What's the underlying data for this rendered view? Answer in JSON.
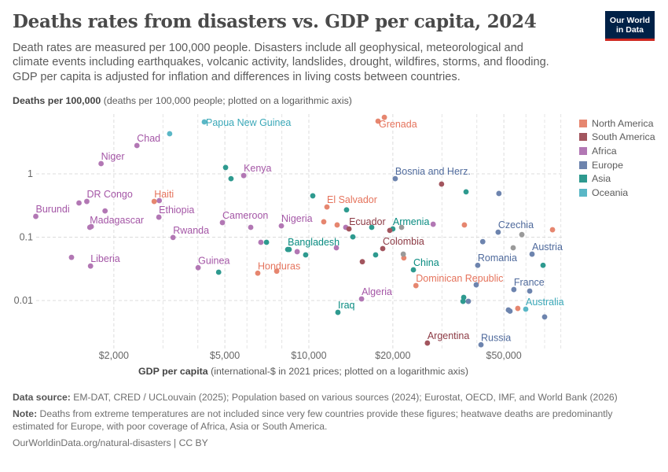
{
  "header": {
    "title": "Deaths rates from disasters vs. GDP per capita, 2024",
    "subtitle": "Death rates are measured per 100,000 people. Disasters include all geophysical, meteorological and climate events including earthquakes, volcanic activity, landslides, drought, wildfires, storms, and flooding. GDP per capita is adjusted for inflation and differences in living costs between countries.",
    "logo_text": "Our World in Data"
  },
  "footer": {
    "source_label": "Data source:",
    "source_text": "EM-DAT, CRED / UCLouvain (2025); Population based on various sources (2024); Eurostat, OECD, IMF, and World Bank (2026)",
    "note_label": "Note:",
    "note_text": "Deaths from extreme temperatures are not included since very few countries provide these figures; heatwave deaths are predominantly estimated for Europe, with poor coverage of Africa, Asia or South America.",
    "url": "OurWorldinData.org/natural-disasters | CC BY"
  },
  "chart_data": {
    "type": "scatter",
    "title": "Deaths rates from disasters vs. GDP per capita, 2024",
    "ylabel_bold": "Deaths per 100,000",
    "ylabel_rest": "(deaths per 100,000 people; plotted on a logarithmic axis)",
    "xlabel_bold": "GDP per capita",
    "xlabel_rest": "(international-$ in 2021 prices; plotted on a logarithmic axis)",
    "x_scale": "log",
    "y_scale": "log",
    "xlim": [
      1000,
      81000
    ],
    "ylim": [
      0.0019,
      8.8
    ],
    "grid": true,
    "legend_position": "right",
    "x_ticks": [
      {
        "value": 2000,
        "label": "$2,000"
      },
      {
        "value": 5000,
        "label": "$5,000"
      },
      {
        "value": 10000,
        "label": "$10,000"
      },
      {
        "value": 20000,
        "label": "$20,000"
      },
      {
        "value": 50000,
        "label": "$50,000"
      }
    ],
    "y_ticks": [
      {
        "value": 0.01,
        "label": "0.01"
      },
      {
        "value": 0.1,
        "label": "0.1"
      },
      {
        "value": 1,
        "label": "1"
      }
    ],
    "legend": [
      {
        "name": "North America",
        "color": "#e6866f"
      },
      {
        "name": "South America",
        "color": "#a2555e"
      },
      {
        "name": "Africa",
        "color": "#b277b4"
      },
      {
        "name": "Europe",
        "color": "#6d84ae"
      },
      {
        "name": "Asia",
        "color": "#2e9a8f"
      },
      {
        "name": "Oceania",
        "color": "#5ab7c6"
      }
    ],
    "label_colors": {
      "North America": "#e5735c",
      "South America": "#8c3a44",
      "Africa": "#a456a6",
      "Europe": "#4f6a9c",
      "Asia": "#088b80",
      "Oceania": "#3aa8b8",
      "": "#888888"
    },
    "other_color": "#9a9a9a",
    "points": [
      {
        "label": "Burundi",
        "region": "Africa",
        "x": 1050,
        "y": 0.213
      },
      {
        "label": "",
        "region": "Africa",
        "x": 1410,
        "y": 0.048
      },
      {
        "label": "Liberia",
        "region": "Africa",
        "x": 1650,
        "y": 0.035
      },
      {
        "label": "Madagascar",
        "region": "Africa",
        "x": 1640,
        "y": 0.143
      },
      {
        "label": "",
        "region": "Africa",
        "x": 1660,
        "y": 0.147
      },
      {
        "label": "",
        "region": "Africa",
        "x": 1500,
        "y": 0.347
      },
      {
        "label": "DR Congo",
        "region": "Africa",
        "x": 1600,
        "y": 0.367
      },
      {
        "label": "",
        "region": "Africa",
        "x": 1860,
        "y": 0.26
      },
      {
        "label": "Niger",
        "region": "Africa",
        "x": 1800,
        "y": 1.45
      },
      {
        "label": "Chad",
        "region": "Africa",
        "x": 2420,
        "y": 2.8
      },
      {
        "label": "Ethiopia",
        "region": "Africa",
        "x": 2900,
        "y": 0.207
      },
      {
        "label": "",
        "region": "Africa",
        "x": 2910,
        "y": 0.378
      },
      {
        "label": "Rwanda",
        "region": "Africa",
        "x": 3260,
        "y": 0.099
      },
      {
        "label": "Guinea",
        "region": "Africa",
        "x": 4010,
        "y": 0.033
      },
      {
        "label": "Kenya",
        "region": "Africa",
        "x": 5840,
        "y": 0.94
      },
      {
        "label": "Cameroon",
        "region": "Africa",
        "x": 4900,
        "y": 0.17
      },
      {
        "label": "",
        "region": "Africa",
        "x": 6190,
        "y": 0.143
      },
      {
        "label": "",
        "region": "Africa",
        "x": 6730,
        "y": 0.083
      },
      {
        "label": "Nigeria",
        "region": "Africa",
        "x": 7970,
        "y": 0.151
      },
      {
        "label": "",
        "region": "Africa",
        "x": 9080,
        "y": 0.059
      },
      {
        "label": "",
        "region": "Africa",
        "x": 13560,
        "y": 0.143
      },
      {
        "label": "",
        "region": "Africa",
        "x": 12550,
        "y": 0.068
      },
      {
        "label": "Algeria",
        "region": "Africa",
        "x": 15450,
        "y": 0.0106
      },
      {
        "label": "",
        "region": "Africa",
        "x": 27900,
        "y": 0.16
      },
      {
        "label": "",
        "region": "Asia",
        "x": 5030,
        "y": 1.26
      },
      {
        "label": "",
        "region": "Asia",
        "x": 5260,
        "y": 0.84
      },
      {
        "label": "",
        "region": "Asia",
        "x": 4750,
        "y": 0.028
      },
      {
        "label": "",
        "region": "Asia",
        "x": 7050,
        "y": 0.083
      },
      {
        "label": "Bangladesh",
        "region": "Asia",
        "x": 8400,
        "y": 0.064
      },
      {
        "label": "",
        "region": "Asia",
        "x": 8500,
        "y": 0.064
      },
      {
        "label": "",
        "region": "Asia",
        "x": 9740,
        "y": 0.0525
      },
      {
        "label": "",
        "region": "Asia",
        "x": 10330,
        "y": 0.45
      },
      {
        "label": "",
        "region": "Asia",
        "x": 13650,
        "y": 0.27
      },
      {
        "label": "",
        "region": "Asia",
        "x": 14380,
        "y": 0.101
      },
      {
        "label": "Iraq",
        "region": "Asia",
        "x": 12710,
        "y": 0.0065
      },
      {
        "label": "",
        "region": "Asia",
        "x": 16800,
        "y": 0.143
      },
      {
        "label": "",
        "region": "Asia",
        "x": 17350,
        "y": 0.0525
      },
      {
        "label": "Armenia",
        "region": "Asia",
        "x": 20000,
        "y": 0.135
      },
      {
        "label": "China",
        "region": "Asia",
        "x": 23700,
        "y": 0.0305
      },
      {
        "label": "",
        "region": "Asia",
        "x": 36600,
        "y": 0.52
      },
      {
        "label": "",
        "region": "Asia",
        "x": 35900,
        "y": 0.0112
      },
      {
        "label": "",
        "region": "Asia",
        "x": 35700,
        "y": 0.0097
      },
      {
        "label": "",
        "region": "Asia",
        "x": 69100,
        "y": 0.036
      },
      {
        "label": "Papua New Guinea",
        "region": "Oceania",
        "x": 4220,
        "y": 6.6
      },
      {
        "label": "",
        "region": "Oceania",
        "x": 3170,
        "y": 4.3
      },
      {
        "label": "Australia",
        "region": "Oceania",
        "x": 59900,
        "y": 0.0073
      },
      {
        "label": "Ecuador",
        "region": "South America",
        "x": 13930,
        "y": 0.135
      },
      {
        "label": "",
        "region": "South America",
        "x": 19500,
        "y": 0.128
      },
      {
        "label": "Colombia",
        "region": "South America",
        "x": 18400,
        "y": 0.066
      },
      {
        "label": "",
        "region": "South America",
        "x": 15550,
        "y": 0.041
      },
      {
        "label": "",
        "region": "South America",
        "x": 29900,
        "y": 0.69
      },
      {
        "label": "Argentina",
        "region": "South America",
        "x": 26600,
        "y": 0.00213
      },
      {
        "label": "Haiti",
        "region": "North America",
        "x": 2790,
        "y": 0.367
      },
      {
        "label": "Honduras",
        "region": "North America",
        "x": 6560,
        "y": 0.027
      },
      {
        "label": "",
        "region": "North America",
        "x": 7670,
        "y": 0.029
      },
      {
        "label": "El Salvador",
        "region": "North America",
        "x": 11610,
        "y": 0.3
      },
      {
        "label": "",
        "region": "North America",
        "x": 11310,
        "y": 0.175
      },
      {
        "label": "",
        "region": "North America",
        "x": 12630,
        "y": 0.156
      },
      {
        "label": "",
        "region": "North America",
        "x": 18650,
        "y": 7.8
      },
      {
        "label": "Grenada",
        "region": "North America",
        "x": 17700,
        "y": 6.8
      },
      {
        "label": "",
        "region": "North America",
        "x": 21900,
        "y": 0.047
      },
      {
        "label": "Dominican Republic",
        "region": "North America",
        "x": 24200,
        "y": 0.0172
      },
      {
        "label": "",
        "region": "North America",
        "x": 36100,
        "y": 0.156
      },
      {
        "label": "",
        "region": "North America",
        "x": 74700,
        "y": 0.131
      },
      {
        "label": "",
        "region": "North America",
        "x": 56100,
        "y": 0.0075
      },
      {
        "label": "Bosnia and Herz.",
        "region": "Europe",
        "x": 20400,
        "y": 0.84
      },
      {
        "label": "",
        "region": "Europe",
        "x": 48000,
        "y": 0.49
      },
      {
        "label": "Czechia",
        "region": "Europe",
        "x": 47700,
        "y": 0.12
      },
      {
        "label": "",
        "region": "Europe",
        "x": 42000,
        "y": 0.085
      },
      {
        "label": "Romania",
        "region": "Europe",
        "x": 40300,
        "y": 0.036
      },
      {
        "label": "",
        "region": "Europe",
        "x": 39800,
        "y": 0.0177
      },
      {
        "label": "France",
        "region": "Europe",
        "x": 54300,
        "y": 0.0149
      },
      {
        "label": "",
        "region": "Europe",
        "x": 61900,
        "y": 0.0141
      },
      {
        "label": "",
        "region": "Europe",
        "x": 37300,
        "y": 0.0097
      },
      {
        "label": "",
        "region": "Europe",
        "x": 51900,
        "y": 0.0071
      },
      {
        "label": "",
        "region": "Europe",
        "x": 52600,
        "y": 0.0068
      },
      {
        "label": "",
        "region": "Europe",
        "x": 70000,
        "y": 0.0055
      },
      {
        "label": "Russia",
        "region": "Europe",
        "x": 41400,
        "y": 0.002
      },
      {
        "label": "Austria",
        "region": "Europe",
        "x": 63100,
        "y": 0.054
      },
      {
        "label": "",
        "region": "",
        "x": 21500,
        "y": 0.143
      },
      {
        "label": "",
        "region": "",
        "x": 21800,
        "y": 0.054
      },
      {
        "label": "",
        "region": "",
        "x": 58000,
        "y": 0.11
      },
      {
        "label": "",
        "region": "",
        "x": 54000,
        "y": 0.068
      }
    ]
  }
}
